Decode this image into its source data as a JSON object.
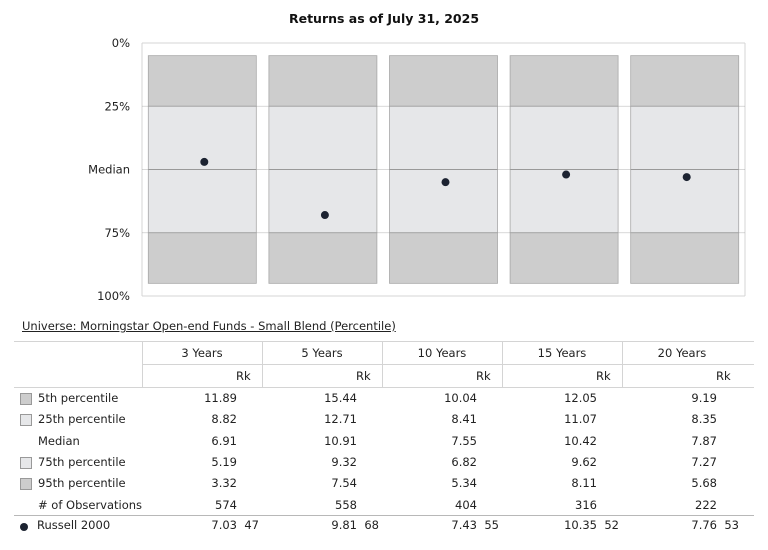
{
  "title": "Returns as of July 31, 2025",
  "colors": {
    "outer_band": "#cdcdcd",
    "inner_band": "#e6e7e9",
    "marker": "#1c2331",
    "grid": "#d4d4d4"
  },
  "chart_data": {
    "type": "box",
    "title": "Returns as of July 31, 2025",
    "y_axis_labels": [
      "0%",
      "25%",
      "Median",
      "75%",
      "100%"
    ],
    "y_axis_values": [
      0,
      25,
      50,
      75,
      100
    ],
    "y_axis_inverted": true,
    "categories": [
      "3 Years",
      "5 Years",
      "10 Years",
      "15 Years",
      "20 Years"
    ],
    "bands": [
      {
        "from": 5,
        "to": 25,
        "color": "#cdcdcd"
      },
      {
        "from": 25,
        "to": 75,
        "color": "#e6e7e9"
      },
      {
        "from": 75,
        "to": 95,
        "color": "#cdcdcd"
      }
    ],
    "series": [
      {
        "name": "Russell 2000",
        "marker": "dot",
        "values": [
          47,
          68,
          55,
          52,
          53
        ]
      }
    ],
    "grid": true
  },
  "table": {
    "universe": "Universe: Morningstar Open-end Funds - Small Blend (Percentile)",
    "columns": [
      "3 Years",
      "5 Years",
      "10 Years",
      "15 Years",
      "20 Years"
    ],
    "rank_header": "Rk",
    "rows": [
      {
        "label": "5th percentile",
        "swatch": "dark",
        "values": [
          "11.89",
          "15.44",
          "10.04",
          "12.05",
          "9.19"
        ]
      },
      {
        "label": "25th percentile",
        "swatch": "light",
        "values": [
          "8.82",
          "12.71",
          "8.41",
          "11.07",
          "8.35"
        ]
      },
      {
        "label": "Median",
        "swatch": "none",
        "values": [
          "6.91",
          "10.91",
          "7.55",
          "10.42",
          "7.87"
        ]
      },
      {
        "label": "75th percentile",
        "swatch": "light",
        "values": [
          "5.19",
          "9.32",
          "6.82",
          "9.62",
          "7.27"
        ]
      },
      {
        "label": "95th percentile",
        "swatch": "dark",
        "values": [
          "3.32",
          "7.54",
          "5.34",
          "8.11",
          "5.68"
        ]
      },
      {
        "label": "# of Observations",
        "swatch": "none",
        "values": [
          "574",
          "558",
          "404",
          "316",
          "222"
        ]
      }
    ],
    "benchmark": {
      "label": "Russell 2000",
      "values": [
        "7.03",
        "9.81",
        "7.43",
        "10.35",
        "7.76"
      ],
      "ranks": [
        "47",
        "68",
        "55",
        "52",
        "53"
      ]
    }
  }
}
